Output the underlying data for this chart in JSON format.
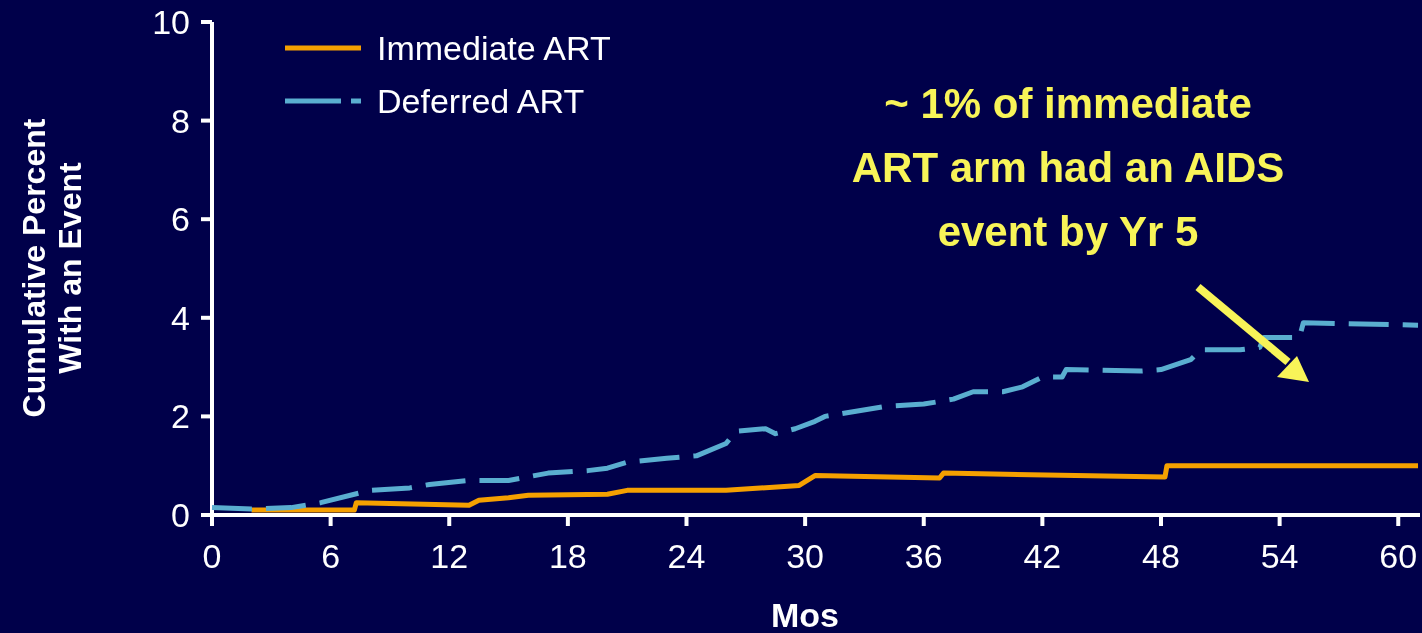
{
  "chart_data": {
    "type": "line",
    "xlabel": "Mos",
    "ylabel": "Cumulative Percent\nWith an Event",
    "xlim": [
      0,
      61.1
    ],
    "ylim": [
      0,
      10
    ],
    "xticks": [
      0,
      6,
      12,
      18,
      24,
      30,
      36,
      42,
      48,
      54,
      60
    ],
    "yticks": [
      0,
      2,
      4,
      6,
      8,
      10
    ],
    "legend": "top left",
    "grid": false,
    "marker": "none",
    "annotations": [
      "~ 1% of immediate\nART arm had an AIDS\nevent by Yr 5"
    ],
    "series": [
      {
        "name": "Immediate ART",
        "color": "#f5a000",
        "line_style": "solid",
        "x": [
          2,
          7.2,
          7.3,
          13,
          13.5,
          15,
          16,
          20,
          21,
          26,
          29.7,
          30.5,
          36.8,
          37,
          48.2,
          48.3,
          61
        ],
        "values": [
          0.1,
          0.1,
          0.25,
          0.2,
          0.3,
          0.35,
          0.4,
          0.42,
          0.5,
          0.5,
          0.6,
          0.8,
          0.75,
          0.85,
          0.77,
          1.0,
          1.0
        ]
      },
      {
        "name": "Deferred ART",
        "color": "#5aaed0",
        "line_style": "dashed",
        "x": [
          0,
          2,
          4,
          5.5,
          8,
          10,
          11,
          13,
          15,
          17,
          19,
          20,
          21,
          23,
          24.5,
          26,
          26.5,
          28,
          28.5,
          29.5,
          30.5,
          31,
          34,
          36,
          37.5,
          38.5,
          40,
          41,
          42,
          43,
          43.2,
          47,
          48,
          49.5,
          50,
          52,
          53,
          53.2,
          55,
          55.2,
          61
        ],
        "values": [
          0.15,
          0.12,
          0.15,
          0.25,
          0.5,
          0.55,
          0.62,
          0.7,
          0.7,
          0.85,
          0.9,
          0.95,
          1.07,
          1.15,
          1.2,
          1.45,
          1.7,
          1.75,
          1.65,
          1.75,
          1.9,
          2.0,
          2.2,
          2.25,
          2.35,
          2.5,
          2.5,
          2.6,
          2.8,
          2.8,
          2.95,
          2.92,
          2.95,
          3.15,
          3.35,
          3.35,
          3.4,
          3.6,
          3.6,
          3.9,
          3.85
        ]
      }
    ]
  }
}
